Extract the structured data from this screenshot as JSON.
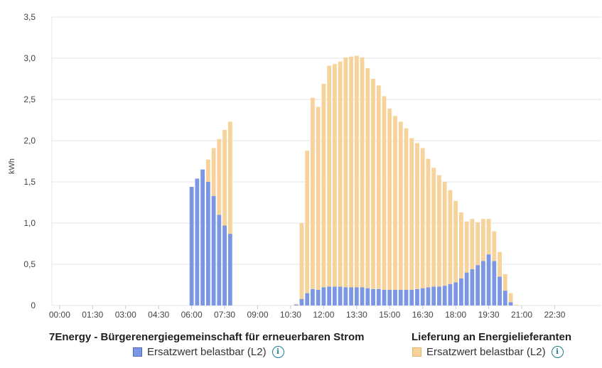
{
  "chart_data": {
    "type": "bar",
    "stacked": true,
    "ylabel": "kWh",
    "xlabel": "",
    "ylim": [
      0,
      3.5
    ],
    "y_ticks": [
      "0",
      "0,5",
      "1,0",
      "1,5",
      "2,0",
      "2,5",
      "3,0",
      "3,5"
    ],
    "y_tick_values": [
      0,
      0.5,
      1.0,
      1.5,
      2.0,
      2.5,
      3.0,
      3.5
    ],
    "x_tick_labels": [
      "00:00",
      "01:30",
      "03:00",
      "04:30",
      "06:00",
      "07:30",
      "09:00",
      "10:30",
      "12:00",
      "13:30",
      "15:00",
      "16:30",
      "18:00",
      "19:30",
      "21:00",
      "22:30"
    ],
    "interval_minutes": 15,
    "grid": true,
    "legend_position": "bottom",
    "categories": [
      "00:00",
      "00:15",
      "00:30",
      "00:45",
      "01:00",
      "01:15",
      "01:30",
      "01:45",
      "02:00",
      "02:15",
      "02:30",
      "02:45",
      "03:00",
      "03:15",
      "03:30",
      "03:45",
      "04:00",
      "04:15",
      "04:30",
      "04:45",
      "05:00",
      "05:15",
      "05:30",
      "05:45",
      "06:00",
      "06:15",
      "06:30",
      "06:45",
      "07:00",
      "07:15",
      "07:30",
      "07:45",
      "08:00",
      "08:15",
      "08:30",
      "08:45",
      "09:00",
      "09:15",
      "09:30",
      "09:45",
      "10:00",
      "10:15",
      "10:30",
      "10:45",
      "11:00",
      "11:15",
      "11:30",
      "11:45",
      "12:00",
      "12:15",
      "12:30",
      "12:45",
      "13:00",
      "13:15",
      "13:30",
      "13:45",
      "14:00",
      "14:15",
      "14:30",
      "14:45",
      "15:00",
      "15:15",
      "15:30",
      "15:45",
      "16:00",
      "16:15",
      "16:30",
      "16:45",
      "17:00",
      "17:15",
      "17:30",
      "17:45",
      "18:00",
      "18:15",
      "18:30",
      "18:45",
      "19:00",
      "19:15",
      "19:30",
      "19:45",
      "20:00",
      "20:15",
      "20:30",
      "20:45",
      "21:00",
      "21:15",
      "21:30",
      "21:45",
      "22:00",
      "22:15",
      "22:30",
      "22:45",
      "23:00",
      "23:15",
      "23:30",
      "23:45"
    ],
    "series": [
      {
        "name": "Ersatzwert belastbar (L2)",
        "group": "7Energy - Bürgerenergiegemeinschaft für erneuerbaren Strom",
        "color": "#7b97e3",
        "values": [
          0,
          0,
          0,
          0,
          0,
          0,
          0,
          0,
          0,
          0,
          0,
          0,
          0,
          0,
          0,
          0,
          0,
          0,
          0,
          0,
          0,
          0,
          0,
          0,
          1.44,
          1.54,
          1.65,
          1.5,
          1.33,
          1.1,
          0.97,
          0.87,
          0,
          0,
          0,
          0,
          0,
          0,
          0,
          0,
          0,
          0,
          0,
          0.01,
          0.08,
          0.15,
          0.2,
          0.19,
          0.22,
          0.23,
          0.23,
          0.23,
          0.22,
          0.22,
          0.22,
          0.22,
          0.21,
          0.2,
          0.2,
          0.19,
          0.19,
          0.19,
          0.19,
          0.19,
          0.19,
          0.2,
          0.21,
          0.22,
          0.23,
          0.23,
          0.24,
          0.26,
          0.28,
          0.33,
          0.4,
          0.44,
          0.49,
          0.54,
          0.62,
          0.54,
          0.35,
          0.18,
          0.04,
          0,
          0,
          0,
          0,
          0,
          0,
          0,
          0,
          0,
          0,
          0,
          0,
          0
        ]
      },
      {
        "name": "Ersatzwert belastbar (L2)",
        "group": "Lieferung an Energielieferanten",
        "color": "#f7d29a",
        "values": [
          0,
          0,
          0,
          0,
          0,
          0,
          0,
          0,
          0,
          0,
          0,
          0,
          0,
          0,
          0,
          0,
          0,
          0,
          0,
          0,
          0,
          0,
          0,
          0,
          0,
          0,
          0,
          0.27,
          0.58,
          0.92,
          1.16,
          1.36,
          0,
          0,
          0,
          0,
          0,
          0,
          0,
          0,
          0,
          0,
          0,
          0.01,
          0.92,
          1.73,
          2.32,
          2.22,
          2.47,
          2.68,
          2.7,
          2.73,
          2.79,
          2.8,
          2.81,
          2.79,
          2.67,
          2.55,
          2.47,
          2.35,
          2.2,
          2.11,
          2.04,
          1.96,
          1.84,
          1.77,
          1.7,
          1.56,
          1.44,
          1.35,
          1.26,
          1.14,
          0.99,
          0.8,
          0.62,
          0.61,
          0.52,
          0.51,
          0.43,
          0.36,
          0.3,
          0.2,
          0.11,
          0.01,
          0,
          0,
          0,
          0,
          0,
          0,
          0,
          0,
          0,
          0,
          0,
          0
        ]
      }
    ]
  },
  "legend": {
    "groups": [
      {
        "title": "7Energy - Bürgerenergiegemeinschaft für erneuerbaren Strom",
        "item_label": "Ersatzwert belastbar (L2)",
        "color": "#7b97e3",
        "info_icon": "info-icon"
      },
      {
        "title": "Lieferung an Energielieferanten",
        "item_label": "Ersatzwert belastbar (L2)",
        "color": "#f7d29a",
        "info_icon": "info-icon"
      }
    ]
  },
  "colors": {
    "grid": "#e6e6e6",
    "axis_text": "#444444",
    "info_accent": "#1a7a8c"
  }
}
